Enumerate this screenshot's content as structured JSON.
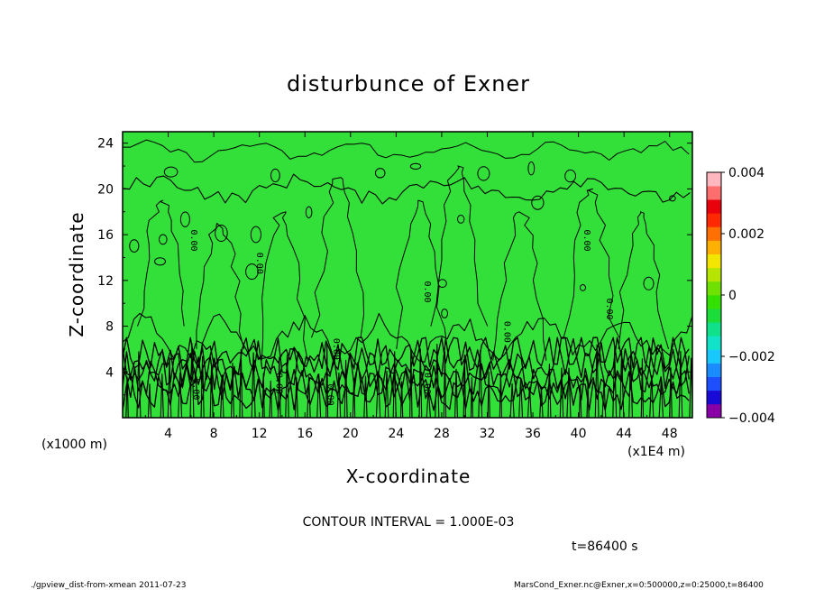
{
  "chart_data": {
    "type": "heatmap",
    "title": "disturbunce of Exner",
    "xlabel": "X-coordinate",
    "ylabel": "Z-coordinate",
    "x_unit_label": "(x1E4 m)",
    "z_unit_label": "(x1000 m)",
    "xlim": [
      0,
      50
    ],
    "ylim": [
      0,
      25
    ],
    "x_ticks": [
      4,
      8,
      12,
      16,
      20,
      24,
      28,
      32,
      36,
      40,
      44,
      48
    ],
    "y_ticks": [
      4,
      8,
      12,
      16,
      20,
      24
    ],
    "contour_interval_text": "CONTOUR INTERVAL = 1.000E-03",
    "contour_label": "0.00",
    "time_text": "t=86400 s",
    "colorbar": {
      "min": -0.004,
      "max": 0.004,
      "tick_labels": [
        "0.004",
        "0.002",
        "0",
        "−0.002",
        "−0.004"
      ],
      "tick_values": [
        0.004,
        0.002,
        0,
        -0.002,
        -0.004
      ],
      "colors": [
        "#8a00a8",
        "#1a0ad6",
        "#1d4fff",
        "#1a8cff",
        "#18c8ff",
        "#10e3c8",
        "#10e08a",
        "#1cdc3a",
        "#34e000",
        "#6fe000",
        "#b6e600",
        "#f2e600",
        "#ffb000",
        "#ff7000",
        "#ff2800",
        "#e8000a",
        "#ff6e6e",
        "#ffb8c0"
      ]
    },
    "field_color": "#33e03a",
    "grid": false
  },
  "footer": {
    "left": "./gpview_dist-from-xmean  2011-07-23",
    "right": "MarsCond_Exner.nc@Exner,x=0:500000,z=0:25000,t=86400"
  }
}
